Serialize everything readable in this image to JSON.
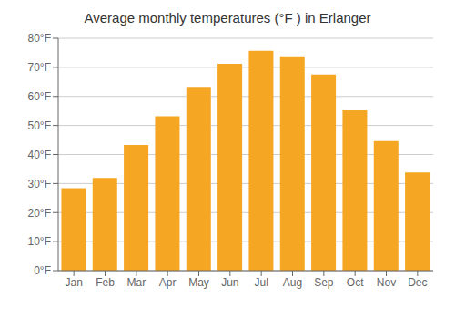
{
  "chart_data": {
    "type": "bar",
    "title": "Average monthly temperatures (°F ) in Erlanger",
    "categories": [
      "Jan",
      "Feb",
      "Mar",
      "Apr",
      "May",
      "Jun",
      "Jul",
      "Aug",
      "Sep",
      "Oct",
      "Nov",
      "Dec"
    ],
    "values": [
      28.4,
      31.9,
      43.3,
      53.2,
      63.0,
      71.2,
      75.7,
      73.8,
      67.5,
      55.2,
      44.6,
      33.8
    ],
    "color": "#F5A623",
    "ylim": [
      0,
      80
    ],
    "yticks": [
      {
        "value": 0,
        "label": "0°F"
      },
      {
        "value": 10,
        "label": "10°F"
      },
      {
        "value": 20,
        "label": "20°F"
      },
      {
        "value": 30,
        "label": "30°F"
      },
      {
        "value": 40,
        "label": "40°F"
      },
      {
        "value": 50,
        "label": "50°F"
      },
      {
        "value": 60,
        "label": "60°F"
      },
      {
        "value": 70,
        "label": "70°F"
      },
      {
        "value": 80,
        "label": "80°F"
      }
    ],
    "grid": true
  }
}
